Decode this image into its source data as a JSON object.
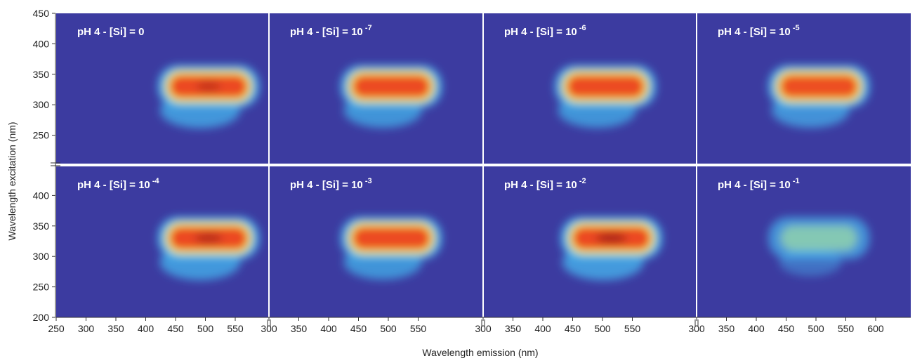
{
  "figure": {
    "ylabel": "Wavelength excitation (nm)",
    "xlabel": "Wavelength emission (nm)"
  },
  "chart_data": {
    "type": "heatmap",
    "colormap": [
      "#3a3a9e",
      "#45b8f0",
      "#f2f24a",
      "#ec4a22",
      "#7a1212"
    ],
    "background_color": "#3c3ba0",
    "grid": false,
    "layout": "2 rows x 4 columns of panels",
    "y_ticks": [
      250,
      300,
      350,
      400,
      450
    ],
    "y_ticks_bottom_row": [
      200,
      250,
      300,
      350,
      400
    ],
    "ylim": [
      200,
      450
    ],
    "x_ticks_first_panel": [
      250,
      300,
      350,
      400,
      450,
      500,
      550
    ],
    "x_ticks_middle_panels": [
      300,
      350,
      400,
      450,
      500,
      550
    ],
    "x_ticks_last_panel": [
      300,
      350,
      400,
      450,
      500,
      550,
      600
    ],
    "xlim": [
      250,
      600
    ],
    "panels": [
      {
        "prefix": "pH 4 - [Si] = ",
        "value": "0",
        "exponent": "",
        "peak_intensity": 0.96,
        "peak_em": 510,
        "peak_ex": 330
      },
      {
        "prefix": "pH 4 - [Si] = ",
        "value": "10",
        "exponent": "-7",
        "peak_intensity": 0.9,
        "peak_em": 505,
        "peak_ex": 330
      },
      {
        "prefix": "pH 4 - [Si] = ",
        "value": "10",
        "exponent": "-6",
        "peak_intensity": 0.9,
        "peak_em": 505,
        "peak_ex": 330
      },
      {
        "prefix": "pH 4 - [Si] = ",
        "value": "10",
        "exponent": "-5",
        "peak_intensity": 0.89,
        "peak_em": 505,
        "peak_ex": 330
      },
      {
        "prefix": "pH 4 - [Si] = ",
        "value": "10",
        "exponent": "-4",
        "peak_intensity": 0.98,
        "peak_em": 510,
        "peak_ex": 330
      },
      {
        "prefix": "pH 4 - [Si] = ",
        "value": "10",
        "exponent": "-3",
        "peak_intensity": 0.9,
        "peak_em": 505,
        "peak_ex": 330
      },
      {
        "prefix": "pH 4 - [Si] = ",
        "value": "10",
        "exponent": "-2",
        "peak_intensity": 1.0,
        "peak_em": 515,
        "peak_ex": 330
      },
      {
        "prefix": "pH 4 - [Si] = ",
        "value": "10",
        "exponent": "-1",
        "peak_intensity": 0.42,
        "peak_em": 505,
        "peak_ex": 330
      }
    ]
  }
}
